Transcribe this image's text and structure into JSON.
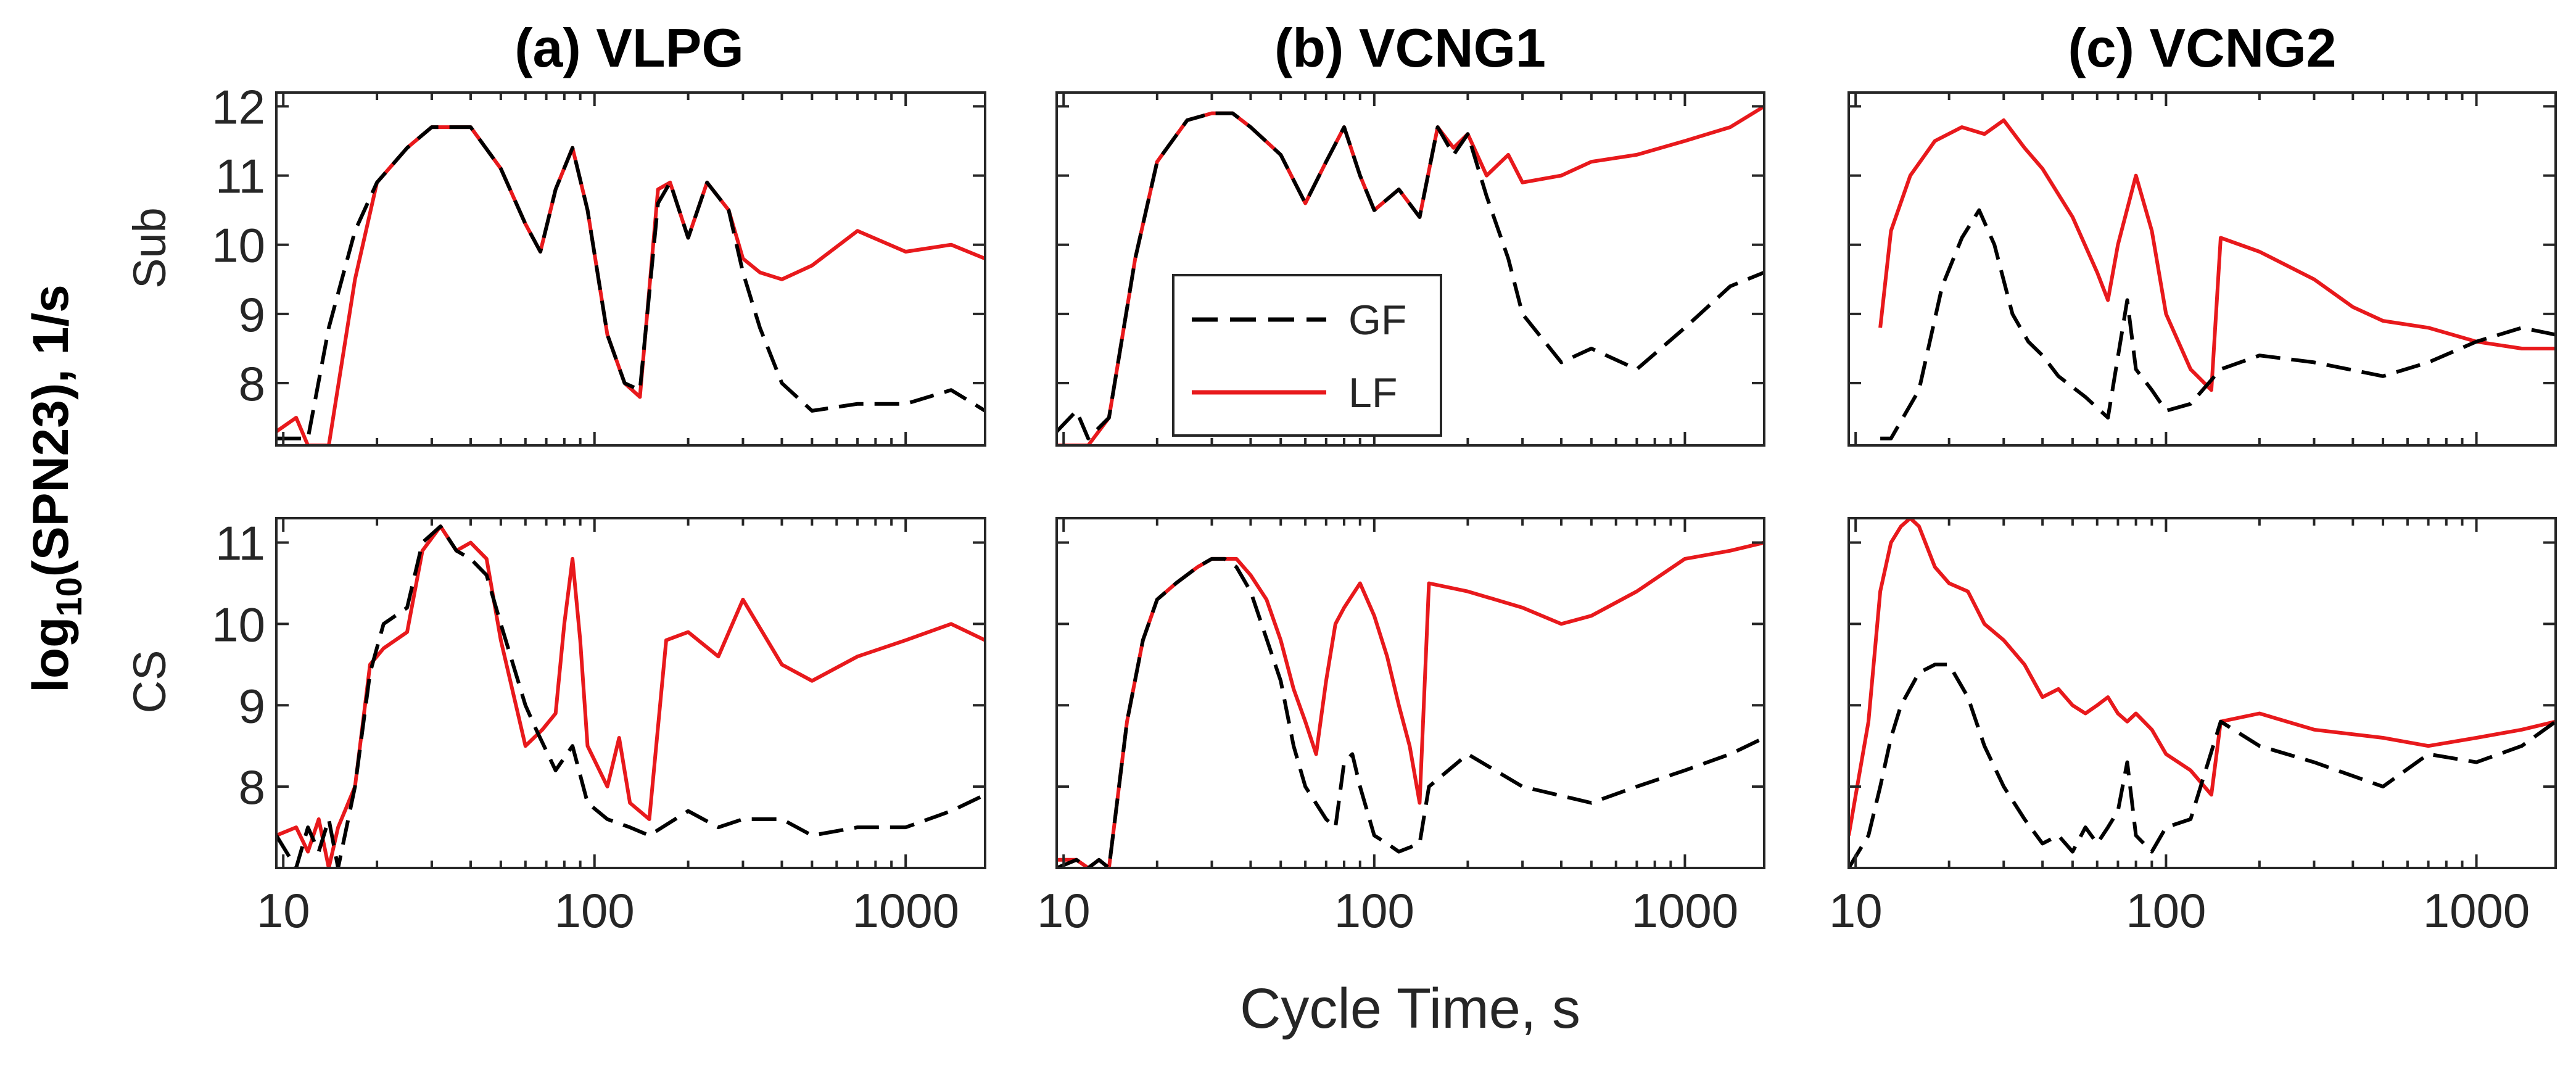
{
  "chart_data": {
    "type": "line",
    "xscale": "log",
    "xlim": [
      9.5,
      1800
    ],
    "xticks": [
      10,
      100,
      1000
    ],
    "xtick_labels": [
      "10",
      "100",
      "1000"
    ],
    "xlabel": "Cycle Time, s",
    "ylabel": "log10(SPN23), 1/s",
    "ylabel_parts": {
      "prefix": "log",
      "sub": "10",
      "suffix": "(SPN23), 1/s"
    },
    "columns": [
      {
        "title": "(a) VLPG"
      },
      {
        "title": "(b) VCNG1"
      },
      {
        "title": "(c) VCNG2"
      }
    ],
    "rows": [
      {
        "label": "Sub",
        "ylim": [
          7.1,
          12.2
        ],
        "yticks": [
          8,
          9,
          10,
          11,
          12
        ],
        "ytick_labels": [
          "8",
          "9",
          "10",
          "11",
          "12"
        ]
      },
      {
        "label": "CS",
        "ylim": [
          7.0,
          11.3
        ],
        "yticks": [
          8,
          9,
          10,
          11
        ],
        "ytick_labels": [
          "8",
          "9",
          "10",
          "11"
        ]
      }
    ],
    "legend": {
      "location": "inside panel (b) Sub, lower-left",
      "entries": [
        {
          "label": "GF",
          "color": "#000000",
          "style": "dashed"
        },
        {
          "label": "LF",
          "color": "#e8191c",
          "style": "solid"
        }
      ]
    },
    "panels": [
      {
        "row": 0,
        "col": 0,
        "title": "(a) VLPG Sub",
        "series": [
          {
            "name": "GF",
            "x": [
              9.5,
              12,
              14,
              17,
              20,
              25,
              30,
              40,
              50,
              60,
              67,
              75,
              85,
              95,
              110,
              125,
              140,
              160,
              175,
              200,
              230,
              270,
              300,
              340,
              400,
              500,
              700,
              1000,
              1400,
              1800
            ],
            "y": [
              7.2,
              7.2,
              8.8,
              10.2,
              10.9,
              11.4,
              11.7,
              11.7,
              11.1,
              10.3,
              9.9,
              10.8,
              11.4,
              10.5,
              8.7,
              8.0,
              7.9,
              10.6,
              10.9,
              10.1,
              10.9,
              10.5,
              9.6,
              8.8,
              8.0,
              7.6,
              7.7,
              7.7,
              7.9,
              7.6
            ]
          },
          {
            "name": "LF",
            "x": [
              9.5,
              11,
              12,
              14,
              17,
              20,
              25,
              30,
              40,
              50,
              60,
              67,
              75,
              85,
              95,
              110,
              125,
              140,
              160,
              175,
              200,
              230,
              270,
              300,
              340,
              400,
              500,
              700,
              1000,
              1400,
              1800
            ],
            "y": [
              7.3,
              7.5,
              7.1,
              7.1,
              9.5,
              10.9,
              11.4,
              11.7,
              11.7,
              11.1,
              10.3,
              9.9,
              10.8,
              11.4,
              10.5,
              8.7,
              8.0,
              7.8,
              10.8,
              10.9,
              10.1,
              10.9,
              10.5,
              9.8,
              9.6,
              9.5,
              9.7,
              10.2,
              9.9,
              10.0,
              9.8
            ]
          }
        ]
      },
      {
        "row": 0,
        "col": 1,
        "title": "(b) VCNG1 Sub",
        "series": [
          {
            "name": "GF",
            "x": [
              9.5,
              11,
              12,
              14,
              17,
              20,
              25,
              30,
              35,
              40,
              50,
              60,
              70,
              80,
              90,
              100,
              120,
              140,
              160,
              180,
              200,
              230,
              270,
              300,
              400,
              500,
              700,
              1000,
              1400,
              1800
            ],
            "y": [
              7.3,
              7.6,
              7.2,
              7.5,
              9.8,
              11.2,
              11.8,
              11.9,
              11.9,
              11.7,
              11.3,
              10.6,
              11.2,
              11.7,
              11.0,
              10.5,
              10.8,
              10.4,
              11.7,
              11.3,
              11.6,
              10.7,
              9.8,
              9.0,
              8.3,
              8.5,
              8.2,
              8.8,
              9.4,
              9.6
            ]
          },
          {
            "name": "LF",
            "x": [
              9.5,
              12,
              14,
              17,
              20,
              25,
              30,
              35,
              40,
              50,
              60,
              70,
              80,
              90,
              100,
              120,
              140,
              160,
              180,
              200,
              230,
              270,
              300,
              400,
              500,
              700,
              1000,
              1400,
              1800
            ],
            "y": [
              7.1,
              7.1,
              7.5,
              9.8,
              11.2,
              11.8,
              11.9,
              11.9,
              11.7,
              11.3,
              10.6,
              11.2,
              11.7,
              11.0,
              10.5,
              10.8,
              10.4,
              11.7,
              11.4,
              11.6,
              11.0,
              11.3,
              10.9,
              11.0,
              11.2,
              11.3,
              11.5,
              11.7,
              12.0
            ]
          }
        ]
      },
      {
        "row": 0,
        "col": 2,
        "title": "(c) VCNG2 Sub",
        "series": [
          {
            "name": "GF",
            "x": [
              12,
              13,
              16,
              19,
              22,
              25,
              28,
              32,
              36,
              40,
              45,
              55,
              65,
              75,
              80,
              90,
              100,
              120,
              150,
              200,
              300,
              500,
              700,
              1000,
              1400,
              1800
            ],
            "y": [
              7.2,
              7.2,
              7.9,
              9.4,
              10.1,
              10.5,
              10.0,
              9.0,
              8.6,
              8.4,
              8.1,
              7.8,
              7.5,
              9.2,
              8.2,
              7.9,
              7.6,
              7.7,
              8.2,
              8.4,
              8.3,
              8.1,
              8.3,
              8.6,
              8.8,
              8.7
            ]
          },
          {
            "name": "LF",
            "x": [
              12,
              13,
              15,
              18,
              22,
              26,
              30,
              35,
              40,
              50,
              60,
              65,
              70,
              80,
              90,
              100,
              120,
              140,
              150,
              200,
              300,
              400,
              500,
              700,
              1000,
              1400,
              1800
            ],
            "y": [
              8.8,
              10.2,
              11.0,
              11.5,
              11.7,
              11.6,
              11.8,
              11.4,
              11.1,
              10.4,
              9.6,
              9.2,
              10.0,
              11.0,
              10.2,
              9.0,
              8.2,
              7.9,
              10.1,
              9.9,
              9.5,
              9.1,
              8.9,
              8.8,
              8.6,
              8.5,
              8.5
            ]
          }
        ]
      },
      {
        "row": 1,
        "col": 0,
        "title": "(a) VLPG CS",
        "series": [
          {
            "name": "GF",
            "x": [
              9.5,
              11,
              12,
              13,
              14,
              15,
              17,
              19,
              21,
              25,
              28,
              32,
              36,
              40,
              45,
              50,
              60,
              65,
              75,
              85,
              95,
              110,
              130,
              150,
              200,
              250,
              300,
              400,
              500,
              700,
              1000,
              1400,
              1800
            ],
            "y": [
              7.4,
              7.0,
              7.5,
              7.2,
              7.6,
              7.0,
              8.0,
              9.4,
              10.0,
              10.2,
              11.0,
              11.2,
              10.9,
              10.8,
              10.6,
              10.0,
              9.0,
              8.7,
              8.2,
              8.5,
              7.8,
              7.6,
              7.5,
              7.4,
              7.7,
              7.5,
              7.6,
              7.6,
              7.4,
              7.5,
              7.5,
              7.7,
              7.9
            ]
          },
          {
            "name": "LF",
            "x": [
              9.5,
              11,
              12,
              13,
              14,
              15,
              17,
              19,
              21,
              25,
              28,
              32,
              36,
              40,
              45,
              50,
              60,
              68,
              75,
              80,
              85,
              90,
              95,
              110,
              120,
              130,
              150,
              170,
              200,
              250,
              300,
              400,
              500,
              700,
              1000,
              1400,
              1800
            ],
            "y": [
              7.4,
              7.5,
              7.2,
              7.6,
              7.0,
              7.5,
              8.0,
              9.5,
              9.7,
              9.9,
              10.9,
              11.2,
              10.9,
              11.0,
              10.8,
              9.8,
              8.5,
              8.7,
              8.9,
              10.0,
              10.8,
              9.8,
              8.5,
              8.0,
              8.6,
              7.8,
              7.6,
              9.8,
              9.9,
              9.6,
              10.3,
              9.5,
              9.3,
              9.6,
              9.8,
              10.0,
              9.8
            ]
          }
        ]
      },
      {
        "row": 1,
        "col": 1,
        "title": "(b) VCNG1 CS",
        "series": [
          {
            "name": "GF",
            "x": [
              9.5,
              11,
              12,
              13,
              14,
              16,
              18,
              20,
              23,
              27,
              30,
              33,
              36,
              40,
              50,
              55,
              60,
              70,
              75,
              80,
              85,
              90,
              100,
              110,
              120,
              140,
              150,
              200,
              300,
              500,
              700,
              1000,
              1400,
              1800
            ],
            "y": [
              7.0,
              7.1,
              7.0,
              7.1,
              7.0,
              8.8,
              9.8,
              10.3,
              10.5,
              10.7,
              10.8,
              10.8,
              10.7,
              10.4,
              9.3,
              8.5,
              8.0,
              7.6,
              7.5,
              8.3,
              8.4,
              8.0,
              7.4,
              7.3,
              7.2,
              7.3,
              8.0,
              8.4,
              8.0,
              7.8,
              8.0,
              8.2,
              8.4,
              8.6
            ]
          },
          {
            "name": "LF",
            "x": [
              9.5,
              11,
              12,
              13,
              14,
              16,
              18,
              20,
              23,
              27,
              30,
              33,
              36,
              40,
              45,
              50,
              55,
              60,
              65,
              70,
              75,
              80,
              90,
              100,
              110,
              120,
              130,
              140,
              150,
              200,
              300,
              400,
              500,
              700,
              1000,
              1400,
              1800
            ],
            "y": [
              7.1,
              7.1,
              7.0,
              7.1,
              7.0,
              8.8,
              9.8,
              10.3,
              10.5,
              10.7,
              10.8,
              10.8,
              10.8,
              10.6,
              10.3,
              9.8,
              9.2,
              8.8,
              8.4,
              9.3,
              10.0,
              10.2,
              10.5,
              10.1,
              9.6,
              9.0,
              8.5,
              7.8,
              10.5,
              10.4,
              10.2,
              10.0,
              10.1,
              10.4,
              10.8,
              10.9,
              11.0
            ]
          }
        ]
      },
      {
        "row": 1,
        "col": 2,
        "title": "(c) VCNG2 CS",
        "series": [
          {
            "name": "GF",
            "x": [
              9.5,
              11,
              12,
              13,
              14,
              16,
              18,
              20,
              23,
              26,
              30,
              35,
              40,
              45,
              50,
              55,
              60,
              65,
              70,
              75,
              80,
              90,
              100,
              120,
              150,
              200,
              300,
              500,
              700,
              1000,
              1400,
              1800
            ],
            "y": [
              7.0,
              7.4,
              8.0,
              8.6,
              9.0,
              9.4,
              9.5,
              9.5,
              9.1,
              8.5,
              8.0,
              7.6,
              7.3,
              7.4,
              7.2,
              7.5,
              7.3,
              7.5,
              7.7,
              8.3,
              7.4,
              7.2,
              7.5,
              7.6,
              8.8,
              8.5,
              8.3,
              8.0,
              8.4,
              8.3,
              8.5,
              8.8
            ]
          },
          {
            "name": "LF",
            "x": [
              9.5,
              11,
              12,
              13,
              14,
              15,
              16,
              18,
              20,
              23,
              26,
              30,
              35,
              40,
              45,
              50,
              55,
              60,
              65,
              70,
              75,
              80,
              90,
              100,
              120,
              140,
              150,
              200,
              300,
              500,
              700,
              1000,
              1400,
              1800
            ],
            "y": [
              7.4,
              8.8,
              10.4,
              11.0,
              11.2,
              11.3,
              11.2,
              10.7,
              10.5,
              10.4,
              10.0,
              9.8,
              9.5,
              9.1,
              9.2,
              9.0,
              8.9,
              9.0,
              9.1,
              8.9,
              8.8,
              8.9,
              8.7,
              8.4,
              8.2,
              7.9,
              8.8,
              8.9,
              8.7,
              8.6,
              8.5,
              8.6,
              8.7,
              8.8
            ]
          }
        ]
      }
    ]
  }
}
